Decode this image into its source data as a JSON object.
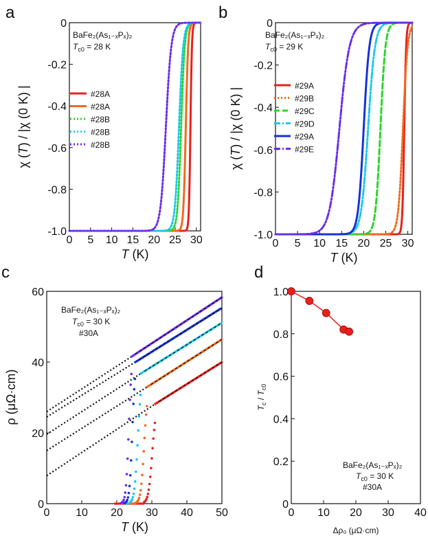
{
  "chart_data": [
    {
      "panel": "a",
      "type": "line",
      "title": "",
      "xlabel_italic": "T",
      "xlabel_unit": " (K)",
      "ylabel_parts": [
        "χ (",
        "T",
        ") / |χ (0 K) |"
      ],
      "xlim": [
        0,
        31
      ],
      "ylim": [
        -1.0,
        0
      ],
      "xticks": [
        0,
        5,
        10,
        15,
        20,
        25,
        30
      ],
      "yticks": [
        0,
        -0.2,
        -0.4,
        -0.6,
        -0.8,
        -1.0
      ],
      "ytick_labels": [
        "0",
        "-0.2",
        "-0.4",
        "-0.6",
        "-0.8",
        "-1.0"
      ],
      "annotation": [
        "BaFe₂(As₁₋ₓPₓ)₂",
        "Tc0 = 28 K"
      ],
      "legend_position": "middle-left",
      "series": [
        {
          "name": "#28A",
          "color": "#e8201c",
          "dash": "solid",
          "tc": 28.6,
          "width": 0.5
        },
        {
          "name": "#28A",
          "color": "#f06a1e",
          "dash": "solid",
          "tc": 27.5,
          "width": 0.8
        },
        {
          "name": "#28B",
          "color": "#2ad62a",
          "dash": "dot",
          "tc": 26.4,
          "width": 1.2
        },
        {
          "name": "#28B",
          "color": "#1ec8e8",
          "dash": "dot",
          "tc": 25.9,
          "width": 1.4
        },
        {
          "name": "#28B",
          "color": "#6a2ee8",
          "dash": "dot",
          "tc": 22.8,
          "width": 1.8
        }
      ]
    },
    {
      "panel": "b",
      "type": "line",
      "xlabel_italic": "T",
      "xlabel_unit": " (K)",
      "ylabel_parts": [
        "χ (",
        "T",
        ") / |χ (0 K) |"
      ],
      "xlim": [
        0,
        31
      ],
      "ylim": [
        -1.0,
        0
      ],
      "xticks": [
        0,
        5,
        10,
        15,
        20,
        25,
        30
      ],
      "yticks": [
        0,
        -0.2,
        -0.4,
        -0.6,
        -0.8,
        -1.0
      ],
      "ytick_labels": [
        "0",
        "-0.2",
        "-0.4",
        "-0.6",
        "-0.8",
        "-1.0"
      ],
      "annotation": [
        "BaFe₂(As₁₋ₓPₓ)₂",
        "Tc0 = 29 K"
      ],
      "legend_position": "middle-left",
      "series": [
        {
          "name": "#29A",
          "color": "#e8201c",
          "dash": "solid",
          "tc": 29.2,
          "width": 0.6
        },
        {
          "name": "#29B",
          "color": "#f06a1e",
          "dash": "dot",
          "tc": 28.9,
          "width": 1.5
        },
        {
          "name": "#29C",
          "color": "#2ad62a",
          "dash": "dash",
          "tc": 23.8,
          "width": 1.6
        },
        {
          "name": "#29D",
          "color": "#1ec8e8",
          "dash": "dashdot",
          "tc": 21.0,
          "width": 2.2
        },
        {
          "name": "#29A",
          "color": "#1432d8",
          "dash": "solid",
          "tc": 20.0,
          "width": 1.8
        },
        {
          "name": "#29E",
          "color": "#6a2ee8",
          "dash": "dashdot",
          "tc": 14.5,
          "width": 3.2
        }
      ]
    },
    {
      "panel": "c",
      "type": "scatter",
      "xlabel_italic": "T",
      "xlabel_unit": " (K)",
      "ylabel": "ρ (μΩ·cm)",
      "xlim": [
        0,
        50
      ],
      "ylim": [
        0,
        60
      ],
      "xticks": [
        0,
        10,
        20,
        30,
        40,
        50
      ],
      "yticks": [
        0,
        20,
        40,
        60
      ],
      "annotation": [
        "BaFe₂(As₁₋ₓPₓ)₂",
        "Tc0 = 30 K",
        "#30A"
      ],
      "series": [
        {
          "color": "#e8201c",
          "tc": 31.0,
          "width": 1.8,
          "rho_at_tc": 28.2,
          "slope": 0.62,
          "fit_intercept": 7.9
        },
        {
          "color": "#f06a1e",
          "tc": 28.7,
          "width": 1.6,
          "rho_at_tc": 33.0,
          "slope": 0.63,
          "fit_intercept": 15.0
        },
        {
          "color": "#1ec8e8",
          "tc": 26.9,
          "width": 1.6,
          "rho_at_tc": 36.8,
          "slope": 0.62,
          "fit_intercept": 19.6
        },
        {
          "color": "#1432d8",
          "tc": 25.3,
          "width": 1.3,
          "rho_at_tc": 40.0,
          "slope": 0.62,
          "fit_intercept": 24.5
        },
        {
          "color": "#6a2ee8",
          "tc": 24.3,
          "width": 1.3,
          "rho_at_tc": 41.6,
          "slope": 0.65,
          "fit_intercept": 26.0
        }
      ]
    },
    {
      "panel": "d",
      "type": "line",
      "xlabel": "Δρ₀ (μΩ·cm)",
      "ylabel_parts": [
        "T",
        "c",
        " / ",
        "T",
        "c0"
      ],
      "xlim": [
        0,
        40
      ],
      "ylim": [
        0,
        1.0
      ],
      "xticks": [
        0,
        10,
        20,
        30,
        40
      ],
      "yticks": [
        0,
        0.2,
        0.4,
        0.6,
        0.8,
        1.0
      ],
      "ytick_labels": [
        "0",
        "0.2",
        "0.4",
        "0.6",
        "0.8",
        "1.0"
      ],
      "annotation": [
        "BaFe₂(As₁₋ₓPₓ)₂",
        "Tc0 = 30 K",
        "#30A"
      ],
      "x": [
        0,
        5.6,
        10.8,
        16.2,
        17.9
      ],
      "y": [
        1.0,
        0.955,
        0.898,
        0.82,
        0.81
      ],
      "color": "#e8201c"
    }
  ],
  "panel_letters": [
    "a",
    "b",
    "c",
    "d"
  ]
}
